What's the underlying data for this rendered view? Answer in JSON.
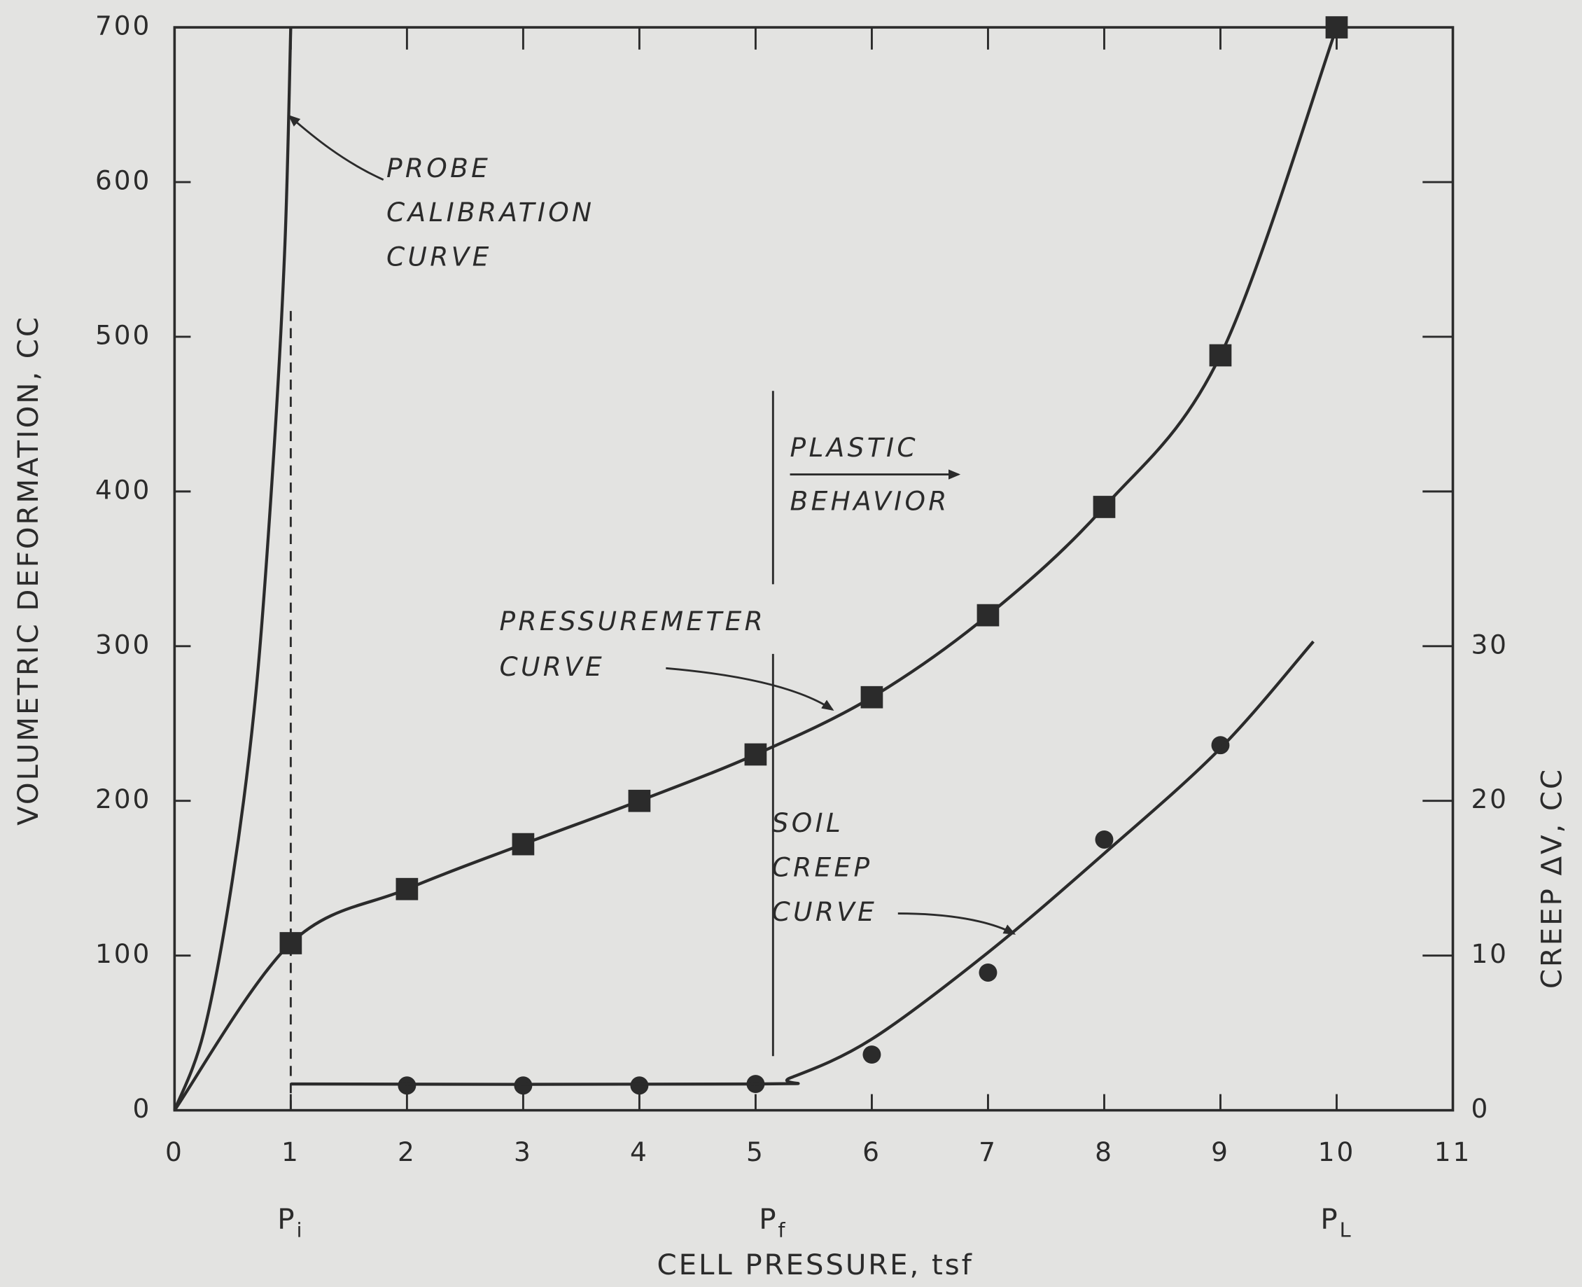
{
  "chart_data": {
    "type": "line",
    "x_label": "CELL PRESSURE, tsf",
    "y_label": "VOLUMETRIC DEFORMATION, CC",
    "y2_label": "CREEP ΔV, CC",
    "xlim": [
      0,
      11
    ],
    "xticks": [
      0,
      1,
      2,
      3,
      4,
      5,
      6,
      7,
      8,
      9,
      10,
      11
    ],
    "ylim": [
      0,
      700
    ],
    "yticks": [
      0,
      100,
      200,
      300,
      400,
      500,
      600,
      700
    ],
    "y2lim": [
      0,
      70
    ],
    "y2ticks": [
      0,
      10,
      20,
      30
    ],
    "color": "#2b2b2b",
    "series": [
      {
        "mode": "line",
        "x": [
          0,
          0.25,
          0.5,
          0.7,
          0.85,
          0.95,
          1
        ],
        "values": [
          0,
          50,
          150,
          270,
          420,
          560,
          700
        ]
      },
      {
        "mode": "line+square",
        "x": [
          1,
          2,
          3,
          4,
          5,
          6,
          7,
          8,
          9,
          10
        ],
        "values": [
          108,
          143,
          172,
          200,
          230,
          267,
          320,
          390,
          488,
          700
        ]
      },
      {
        "mode": "circle",
        "axis": "y2",
        "x": [
          2,
          3,
          4,
          5,
          6,
          7,
          8,
          9
        ],
        "values": [
          1.6,
          1.6,
          1.6,
          1.7,
          3.6,
          8.9,
          17.5,
          23.6
        ]
      },
      {
        "mode": "line",
        "axis": "y2",
        "x": [
          1,
          5,
          5.3,
          6,
          7,
          8,
          9,
          9.8
        ],
        "values": [
          1.7,
          1.7,
          2.1,
          4.6,
          10.2,
          16.6,
          23.4,
          30.3
        ]
      }
    ],
    "x_markers": [
      {
        "x": 1,
        "label": "P",
        "sub": "i"
      },
      {
        "x": 5.15,
        "label": "P",
        "sub": "f"
      },
      {
        "x": 10,
        "label": "P",
        "sub": "L"
      }
    ],
    "annotations": {
      "probe": [
        "PROBE",
        "CALIBRATION",
        "CURVE"
      ],
      "plastic": [
        "PLASTIC",
        "BEHAVIOR"
      ],
      "pressuremeter": [
        "PRESSUREMETER",
        "CURVE"
      ],
      "creep": [
        "SOIL",
        "CREEP",
        "CURVE"
      ]
    }
  }
}
